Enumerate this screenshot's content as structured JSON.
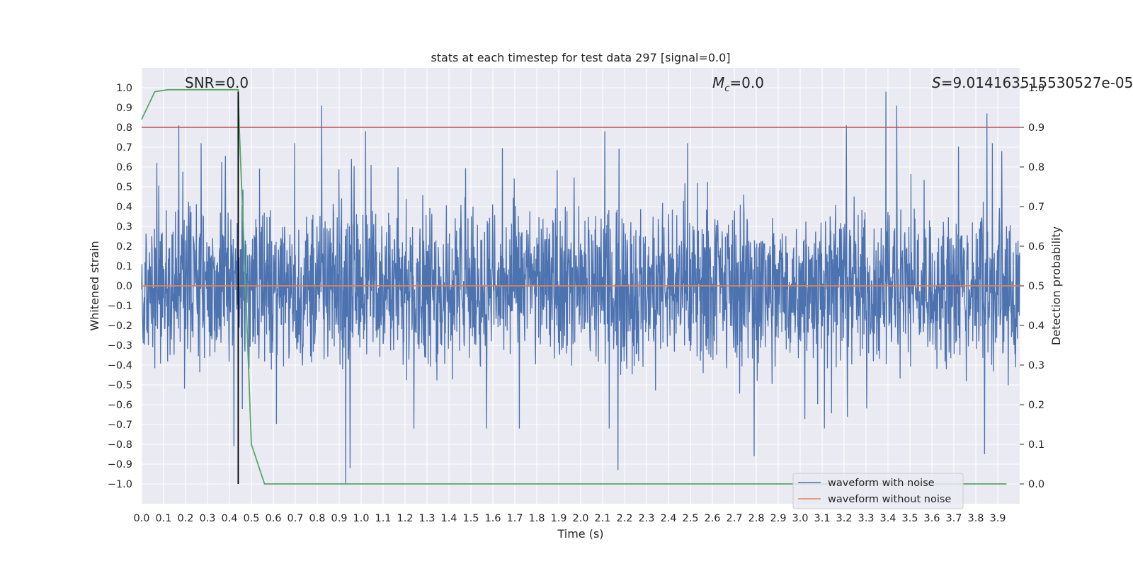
{
  "chart_data": {
    "type": "line",
    "title": "stats at each timestep for test data 297 [signal=0.0]",
    "xlabel": "Time (s)",
    "ylabel": "Whitened strain",
    "y2label": "Detection probability",
    "xlim": [
      0.0,
      4.0
    ],
    "ylim": [
      -1.1,
      1.1
    ],
    "y2lim": [
      -0.05,
      1.05
    ],
    "xticks": [
      "0.0",
      "0.1",
      "0.2",
      "0.3",
      "0.4",
      "0.5",
      "0.6",
      "0.7",
      "0.8",
      "0.9",
      "1.0",
      "1.1",
      "1.2",
      "1.3",
      "1.4",
      "1.5",
      "1.6",
      "1.7",
      "1.8",
      "1.9",
      "2.0",
      "2.1",
      "2.2",
      "2.3",
      "2.4",
      "2.5",
      "2.6",
      "2.7",
      "2.8",
      "2.9",
      "3.0",
      "3.1",
      "3.2",
      "3.3",
      "3.4",
      "3.5",
      "3.6",
      "3.7",
      "3.8",
      "3.9"
    ],
    "yticks": [
      "1.0",
      "0.9",
      "0.8",
      "0.7",
      "0.6",
      "0.5",
      "0.4",
      "0.3",
      "0.2",
      "0.1",
      "0.0",
      "−0.1",
      "−0.2",
      "−0.3",
      "−0.4",
      "−0.5",
      "−0.6",
      "−0.7",
      "−0.8",
      "−0.9",
      "−1.0"
    ],
    "y2ticks": [
      "1.0",
      "0.9",
      "0.8",
      "0.7",
      "0.6",
      "0.5",
      "0.4",
      "0.3",
      "0.2",
      "0.1",
      "0.0"
    ],
    "grid": true,
    "legend_position": "bottom-right",
    "annotations": {
      "snr": "SNR=0.0",
      "mc_symbol": "M",
      "mc_sub": "c",
      "mc_value": "=0.0",
      "s_symbol": "S",
      "s_value": "=9.014163515530527e-05"
    },
    "series": [
      {
        "name": "waveform with noise",
        "color": "#4c72b0",
        "axis": "left",
        "description": "whitened noise, amplitude roughly within -1.0..1.0",
        "peaks": [
          {
            "t": 0.07,
            "v": 0.62
          },
          {
            "t": 0.17,
            "v": 0.81
          },
          {
            "t": 0.42,
            "v": -0.81
          },
          {
            "t": 0.82,
            "v": 0.91
          },
          {
            "t": 0.93,
            "v": -1.0
          },
          {
            "t": 0.95,
            "v": -0.92
          },
          {
            "t": 1.02,
            "v": 0.78
          },
          {
            "t": 2.11,
            "v": 0.78
          },
          {
            "t": 2.17,
            "v": -0.93
          },
          {
            "t": 2.79,
            "v": -0.86
          },
          {
            "t": 3.21,
            "v": 0.81
          },
          {
            "t": 3.39,
            "v": 0.98
          },
          {
            "t": 3.44,
            "v": 0.91
          },
          {
            "t": 3.84,
            "v": -0.85
          },
          {
            "t": 3.85,
            "v": 0.87
          }
        ]
      },
      {
        "name": "waveform without noise",
        "color": "#dd8452",
        "axis": "left",
        "x": [
          0.0,
          4.0
        ],
        "y": [
          0.0,
          0.0
        ]
      },
      {
        "name": "detection probability",
        "color": "#55a868",
        "axis": "right",
        "x": [
          0.0,
          0.06,
          0.12,
          0.2,
          0.3,
          0.44,
          0.445,
          0.47,
          0.5,
          0.56,
          0.6,
          1.0,
          2.0,
          3.0,
          3.94
        ],
        "y": [
          0.92,
          0.99,
          0.995,
          0.995,
          0.995,
          0.995,
          0.9,
          0.55,
          0.1,
          0.0,
          0.0,
          0.0,
          0.0,
          0.0,
          0.0
        ]
      }
    ],
    "reference_lines": [
      {
        "name": "threshold",
        "orientation": "horizontal",
        "axis": "right",
        "value": 0.9,
        "color": "#c44e52"
      },
      {
        "name": "trigger-time",
        "orientation": "vertical",
        "value": 0.44,
        "ymin": -1.0,
        "ymax": 0.99,
        "color": "#000000"
      }
    ]
  }
}
